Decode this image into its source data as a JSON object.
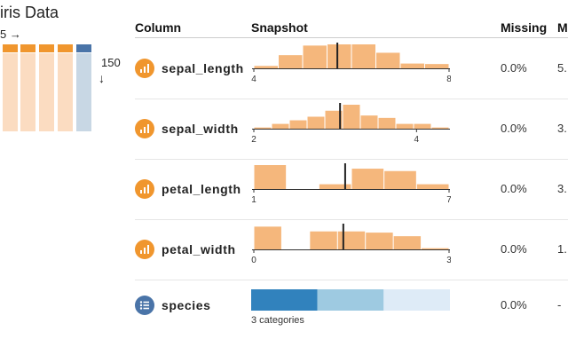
{
  "dataset": {
    "title": "iris Data",
    "columns_count_label": "5 →",
    "rows_count": "150",
    "rows_arrow": "↓"
  },
  "colors": {
    "numeric_accent": "#f0962e",
    "bar_fill": "#f5b77c",
    "bar_fill_light": "#fbdcc1",
    "categorical_accent": "#3b6ea5",
    "cat_light": "#c8d7e4",
    "cat1": "#3182bd",
    "cat2": "#9ecae1",
    "cat3": "#deebf7"
  },
  "headers": {
    "column": "Column",
    "snapshot": "Snapshot",
    "missing": "Missing",
    "next": "M"
  },
  "rows": [
    {
      "name": "sepal_length",
      "type_icon": "bar-chart-icon",
      "missing": "0.0%",
      "next": "5.",
      "hist": [
        0.1,
        0.55,
        0.95,
        1.0,
        1.0,
        0.65,
        0.2,
        0.18
      ],
      "range": [
        4.3,
        7.9
      ],
      "mean": 5.84,
      "ticks": [
        4,
        8
      ],
      "tick_labels": [
        "4",
        "8"
      ]
    },
    {
      "name": "sepal_width",
      "type_icon": "bar-chart-icon",
      "missing": "0.0%",
      "next": "3.",
      "hist": [
        0.05,
        0.2,
        0.35,
        0.5,
        0.75,
        1.0,
        0.55,
        0.45,
        0.2,
        0.2,
        0.05
      ],
      "range": [
        2.0,
        4.4
      ],
      "mean": 3.06,
      "ticks": [
        2,
        4
      ],
      "tick_labels": [
        "2",
        "4"
      ]
    },
    {
      "name": "petal_length",
      "type_icon": "bar-chart-icon",
      "missing": "0.0%",
      "next": "3.",
      "hist": [
        1.0,
        0.0,
        0.2,
        0.85,
        0.75,
        0.2
      ],
      "range": [
        1.0,
        6.9
      ],
      "mean": 3.76,
      "ticks": [
        1,
        7
      ],
      "tick_labels": [
        "1",
        "7"
      ]
    },
    {
      "name": "petal_width",
      "type_icon": "bar-chart-icon",
      "missing": "0.0%",
      "next": "1.",
      "hist": [
        0.95,
        0.0,
        0.75,
        0.75,
        0.7,
        0.55,
        0.05
      ],
      "range": [
        0.1,
        2.5
      ],
      "mean": 1.2,
      "ticks": [
        0,
        3
      ],
      "tick_labels": [
        "0",
        "3"
      ]
    },
    {
      "name": "species",
      "type_icon": "list-icon",
      "missing": "0.0%",
      "next": "-",
      "categories_label": "3 categories",
      "category_shares": [
        0.3333,
        0.3333,
        0.3334
      ]
    }
  ]
}
